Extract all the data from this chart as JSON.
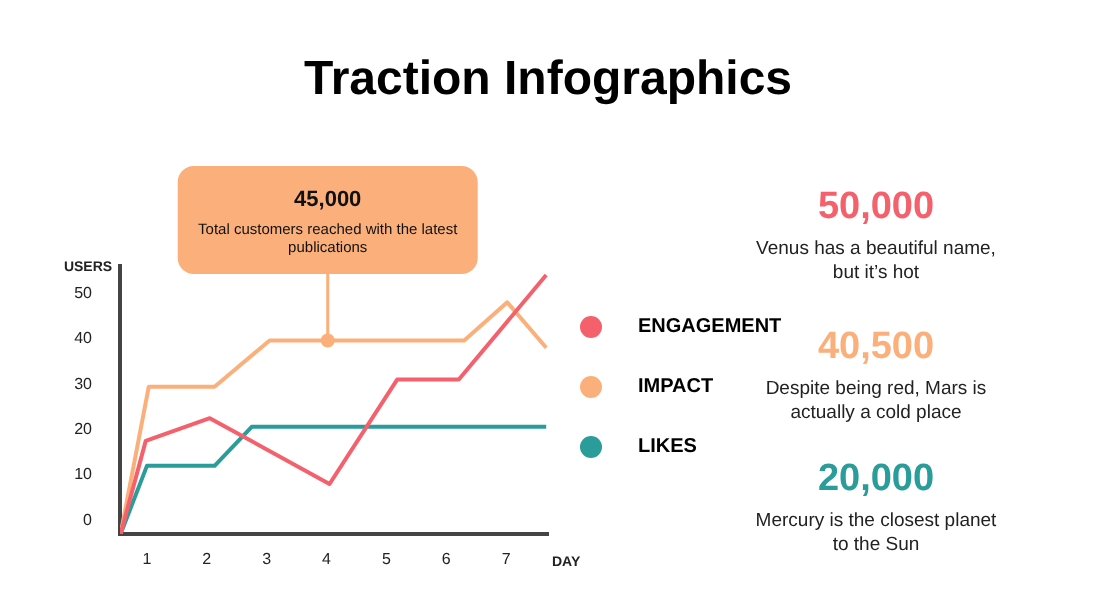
{
  "chart_data": {
    "type": "line",
    "title": "Traction Infographics",
    "xlabel": "DAY",
    "ylabel": "USERS",
    "xlim": [
      0.55,
      7.7
    ],
    "xticks": [
      1,
      2,
      3,
      4,
      5,
      6,
      7
    ],
    "ylim": [
      -3,
      56
    ],
    "yticks": [
      0,
      10,
      20,
      30,
      40,
      50
    ],
    "grid": false,
    "legend": "right",
    "marker": "none",
    "line_style": "solid",
    "series": [
      {
        "name": "ENGAGEMENT",
        "color": "#f4606c",
        "x": [
          0.56,
          0.98,
          2.05,
          4.05,
          5.18,
          6.21,
          7.67
        ],
        "values": [
          -3,
          17.5,
          22.5,
          8,
          31,
          31,
          54
        ]
      },
      {
        "name": "IMPACT",
        "color": "#fbb07b",
        "x": [
          0.56,
          1.03,
          2.13,
          3.05,
          4.02,
          6.3,
          7.02,
          7.67
        ],
        "values": [
          -3,
          29.4,
          29.4,
          39.6,
          39.6,
          39.6,
          48,
          38
        ]
      },
      {
        "name": "LIKES",
        "color": "#2a9d9a",
        "x": [
          0.56,
          1.0,
          2.13,
          2.75,
          7.67
        ],
        "values": [
          -3,
          12,
          12,
          20.6,
          20.6
        ]
      }
    ],
    "annotations": [
      {
        "text": "45,000\nTotal customers reached with the latest publications",
        "x": 4.02,
        "y": 39.6
      },
      "50,000",
      "Venus has a beautiful name, but it’s hot",
      "40,500",
      "Despite being red, Mars is actually a cold place",
      "20,000",
      "Mercury is the closest planet to the Sun"
    ]
  }
}
